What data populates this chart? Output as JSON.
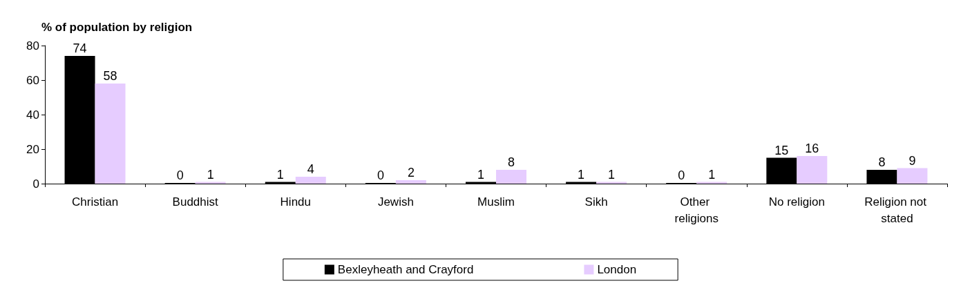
{
  "chart_data": {
    "type": "bar",
    "ylabel": "% of population by religion",
    "categories": [
      "Christian",
      "Buddhist",
      "Hindu",
      "Jewish",
      "Muslim",
      "Sikh",
      "Other religions",
      "No religion",
      "Religion not stated"
    ],
    "series": [
      {
        "name": "Bexleyheath and Crayford",
        "color": "#000000",
        "values": [
          74,
          0,
          1,
          0,
          1,
          1,
          0,
          15,
          8
        ]
      },
      {
        "name": "London",
        "color": "#e6ccff",
        "values": [
          58,
          1,
          4,
          2,
          8,
          1,
          1,
          16,
          9
        ]
      }
    ],
    "ylim": [
      0,
      80
    ],
    "yticks": [
      0,
      20,
      40,
      60,
      80
    ],
    "grid": false,
    "legend": "bottom",
    "data_labels": true
  }
}
